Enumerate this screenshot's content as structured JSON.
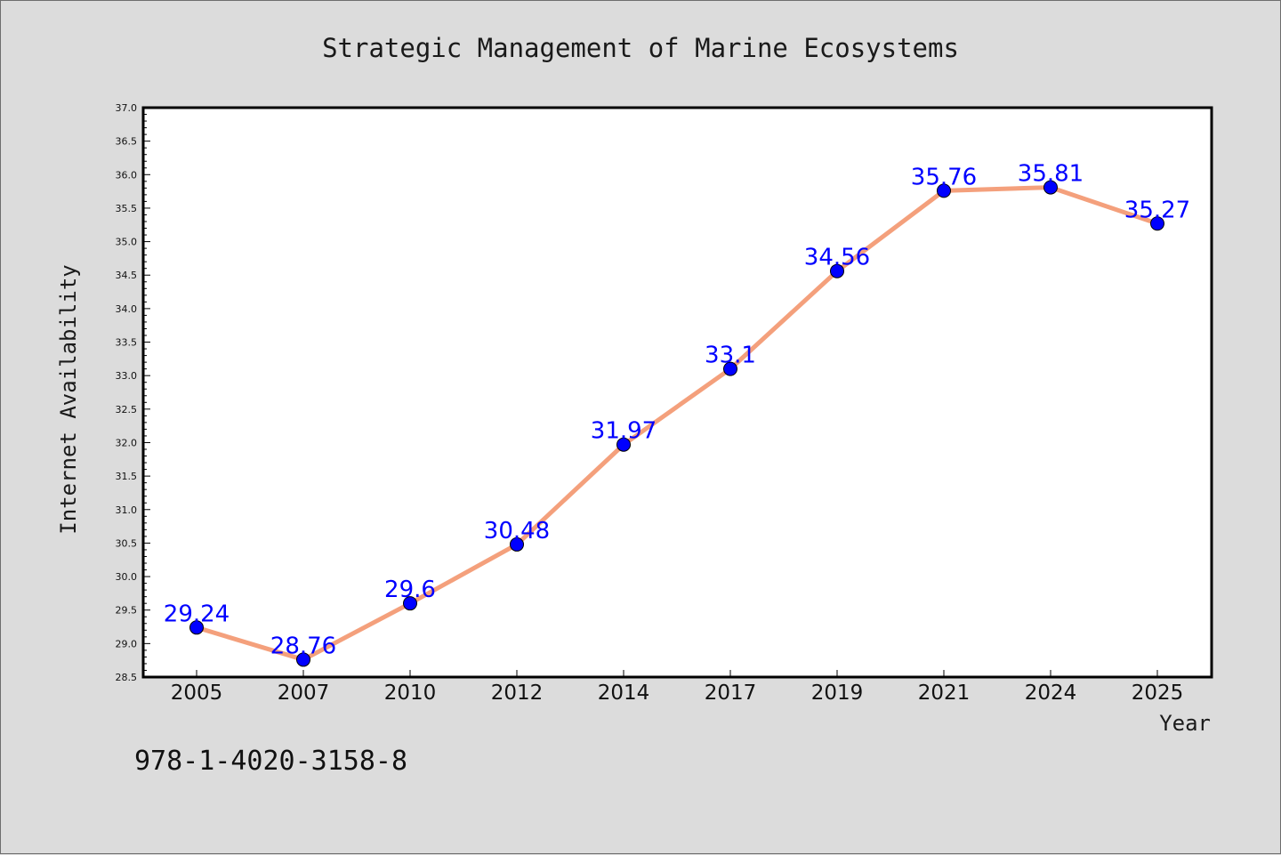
{
  "chart_data": {
    "type": "line",
    "title": "Strategic Management of Marine Ecosystems",
    "xlabel": "Year",
    "ylabel": "Internet Availability",
    "categories": [
      "2005",
      "2007",
      "2010",
      "2012",
      "2014",
      "2017",
      "2019",
      "2021",
      "2024",
      "2025"
    ],
    "values": [
      29.24,
      28.76,
      29.6,
      30.48,
      31.97,
      33.1,
      34.56,
      35.76,
      35.81,
      35.27
    ],
    "data_labels": [
      "29.24",
      "28.76",
      "29.6",
      "30.48",
      "31.97",
      "33.1",
      "34.56",
      "35.76",
      "35.81",
      "35.27"
    ],
    "ylim": [
      28.5,
      37.0
    ],
    "yticks": [
      "28.5",
      "29.0",
      "29.5",
      "30.0",
      "30.5",
      "31.0",
      "31.5",
      "32.0",
      "32.5",
      "33.0",
      "33.5",
      "34.0",
      "34.5",
      "35.0",
      "35.5",
      "36.0",
      "36.5",
      "37.0"
    ],
    "grid": false,
    "line_color": "#f4a07c",
    "marker_color": "#0000ff",
    "label_color": "#0000ff",
    "plot_background": "#ffffff",
    "figure_background": "#dcdcdc"
  },
  "footer_text": "978-1-4020-3158-8"
}
